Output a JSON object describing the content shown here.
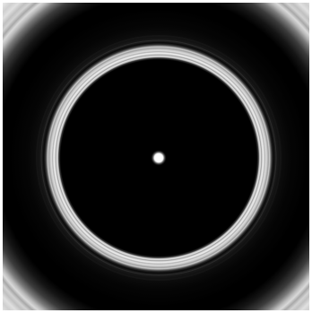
{
  "image": {
    "subject": "concentric-ring-pattern",
    "colors": {
      "background": "#000000",
      "ring": "#d4d4d4",
      "ring_highlight": "#f2f2f2",
      "center_dot": "#ffffff",
      "frame": "#ffffff"
    }
  }
}
